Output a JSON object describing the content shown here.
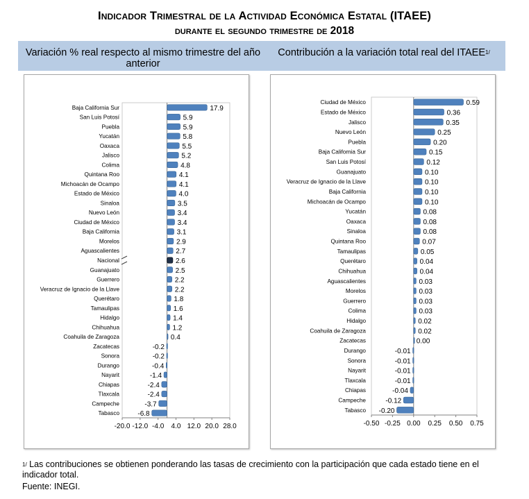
{
  "title_line1": "Indicador Trimestral de la Actividad Económica Estatal (ITAEE)",
  "title_line2": "durante el segundo trimestre de 2018",
  "header_left": "Variación % real respecto al mismo trimestre del año anterior",
  "header_right": "Contribución a la variación total real del ITAEE",
  "header_right_sup": "1/",
  "footnote_marker": "1/",
  "footnote_text": "Las contribuciones se obtienen ponderando las tasas de crecimiento con la participación que cada estado tiene en el indicador total.",
  "source": "Fuente: INEGI.",
  "colors": {
    "bar": "#4f81bd",
    "bar_highlight": "#1f2f47",
    "header_band": "#b8cce4"
  },
  "chart_data": [
    {
      "type": "bar",
      "orientation": "horizontal",
      "xlim": [
        -20.0,
        28.0
      ],
      "xticks": [
        "-20.0",
        "-12.0",
        "-4.0",
        "4.0",
        "12.0",
        "20.0",
        "28.0"
      ],
      "axis_break": true,
      "highlight": "Nacional",
      "categories": [
        "Baja California Sur",
        "San Luis Potosí",
        "Puebla",
        "Yucatán",
        "Oaxaca",
        "Jalisco",
        "Colima",
        "Quintana Roo",
        "Michoacán de Ocampo",
        "Estado de México",
        "Sinaloa",
        "Nuevo León",
        "Ciudad de México",
        "Baja California",
        "Morelos",
        "Aguascalientes",
        "Nacional",
        "Guanajuato",
        "Guerrero",
        "Veracruz de Ignacio de la Llave",
        "Querétaro",
        "Tamaulipas",
        "Hidalgo",
        "Chihuahua",
        "Coahuila de Zaragoza",
        "Zacatecas",
        "Sonora",
        "Durango",
        "Nayarit",
        "Chiapas",
        "Tlaxcala",
        "Campeche",
        "Tabasco"
      ],
      "values": [
        17.9,
        5.9,
        5.9,
        5.8,
        5.5,
        5.2,
        4.8,
        4.1,
        4.1,
        4.0,
        3.5,
        3.4,
        3.4,
        3.1,
        2.9,
        2.7,
        2.6,
        2.5,
        2.2,
        2.2,
        1.8,
        1.6,
        1.4,
        1.2,
        0.4,
        -0.2,
        -0.2,
        -0.4,
        -1.4,
        -2.4,
        -2.4,
        -3.7,
        -6.8
      ],
      "labels": [
        "17.9",
        "5.9",
        "5.9",
        "5.8",
        "5.5",
        "5.2",
        "4.8",
        "4.1",
        "4.1",
        "4.0",
        "3.5",
        "3.4",
        "3.4",
        "3.1",
        "2.9",
        "2.7",
        "2.6",
        "2.5",
        "2.2",
        "2.2",
        "1.8",
        "1.6",
        "1.4",
        "1.2",
        "0.4",
        "-0.2",
        "-0.2",
        "-0.4",
        "-1.4",
        "-2.4",
        "-2.4",
        "-3.7",
        "-6.8"
      ]
    },
    {
      "type": "bar",
      "orientation": "horizontal",
      "xlim": [
        -0.5,
        0.75
      ],
      "xticks": [
        "-0.50",
        "-0.25",
        "0.00",
        "0.25",
        "0.50",
        "0.75"
      ],
      "categories": [
        "Ciudad de México",
        "Estado de México",
        "Jalisco",
        "Nuevo León",
        "Puebla",
        "Baja California Sur",
        "San Luis Potosí",
        "Guanajuato",
        "Veracruz de Ignacio de la Llave",
        "Baja California",
        "Michoacán de Ocampo",
        "Yucatán",
        "Oaxaca",
        "Sinaloa",
        "Quintana Roo",
        "Tamaulipas",
        "Querétaro",
        "Chihuahua",
        "Aguascalientes",
        "Morelos",
        "Guerrero",
        "Colima",
        "Hidalgo",
        "Coahuila de Zaragoza",
        "Zacatecas",
        "Durango",
        "Sonora",
        "Nayarit",
        "Tlaxcala",
        "Chiapas",
        "Campeche",
        "Tabasco"
      ],
      "values": [
        0.59,
        0.36,
        0.35,
        0.25,
        0.2,
        0.15,
        0.12,
        0.1,
        0.1,
        0.1,
        0.1,
        0.08,
        0.08,
        0.08,
        0.07,
        0.05,
        0.04,
        0.04,
        0.03,
        0.03,
        0.03,
        0.03,
        0.02,
        0.02,
        0.0,
        -0.01,
        -0.01,
        -0.01,
        -0.01,
        -0.04,
        -0.12,
        -0.2
      ],
      "labels": [
        "0.59",
        "0.36",
        "0.35",
        "0.25",
        "0.20",
        "0.15",
        "0.12",
        "0.10",
        "0.10",
        "0.10",
        "0.10",
        "0.08",
        "0.08",
        "0.08",
        "0.07",
        "0.05",
        "0.04",
        "0.04",
        "0.03",
        "0.03",
        "0.03",
        "0.03",
        "0.02",
        "0.02",
        "0.00",
        "-0.01",
        "-0.01",
        "-0.01",
        "-0.01",
        "-0.04",
        "-0.12",
        "-0.20"
      ]
    }
  ]
}
